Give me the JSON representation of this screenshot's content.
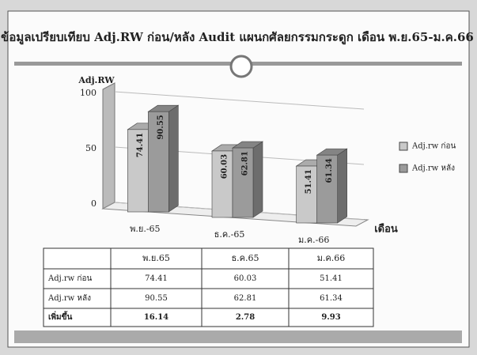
{
  "chart_data": {
    "type": "bar3d",
    "title": "ข้อมูลเปรียบเทียบ Adj.RW ก่อน/หลัง Audit แผนกศัลยกรรมกระดูก เดือน พ.ย.65-ม.ค.66",
    "y_label": "Adj.RW",
    "x_label": "เดือน",
    "categories": [
      "พ.ย.-65",
      "ธ.ค.-65",
      "ม.ค.-66"
    ],
    "series": [
      {
        "name": "Adj.rw ก่อน",
        "color": "#c9c9c9",
        "values": [
          74.41,
          60.03,
          51.41
        ]
      },
      {
        "name": "Adj.rw หลัง",
        "color": "#9b9b9b",
        "values": [
          90.55,
          62.81,
          61.34
        ]
      }
    ],
    "ylim": [
      0,
      100
    ],
    "yticks": [
      0,
      50,
      100
    ],
    "grid": true,
    "legend": "right"
  },
  "table": {
    "header": [
      "พ.ย.65",
      "ธ.ค.65",
      "ม.ค.66"
    ],
    "rows": [
      [
        "Adj.rw ก่อน",
        74.41,
        60.03,
        51.41
      ],
      [
        "Adj.rw หลัง",
        90.55,
        62.81,
        61.34
      ],
      [
        "เพิ่มขึ้น",
        16.14,
        2.78,
        9.93
      ]
    ]
  }
}
